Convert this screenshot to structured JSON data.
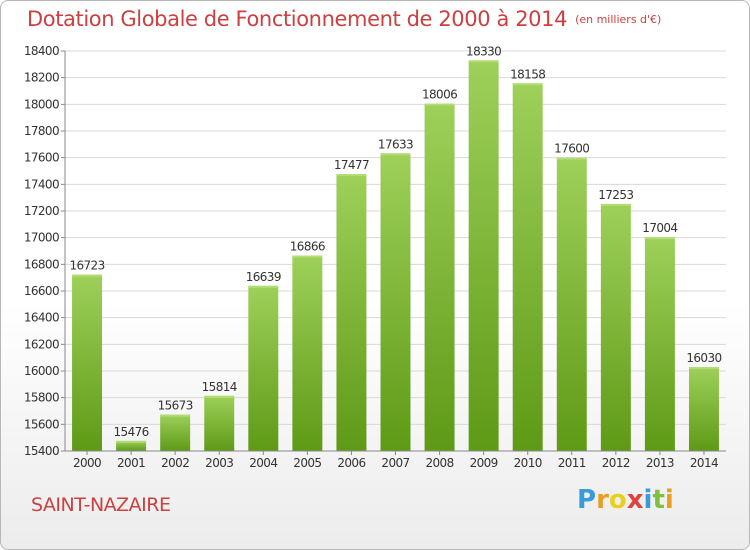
{
  "header": {
    "title": "Dotation Globale de Fonctionnement de 2000 à 2014",
    "unit": "(en milliers d'€)"
  },
  "footer": {
    "commune": "SAINT-NAZAIRE",
    "logo": {
      "letters": [
        "P",
        "r",
        "o",
        "x",
        "i",
        "t",
        "i"
      ],
      "colors": [
        "#3a9bd9",
        "#e8a020",
        "#e8d020",
        "#e04040",
        "#3a9bd9",
        "#80c040",
        "#e8a020"
      ]
    }
  },
  "colors": {
    "bar_top": "#9ed05a",
    "bar_bottom": "#5e9a16",
    "title": "#cc4040"
  },
  "chart_data": {
    "type": "bar",
    "categories": [
      "2000",
      "2001",
      "2002",
      "2003",
      "2004",
      "2005",
      "2006",
      "2007",
      "2008",
      "2009",
      "2010",
      "2011",
      "2012",
      "2013",
      "2014"
    ],
    "values": [
      16723,
      15476,
      15673,
      15814,
      16639,
      16866,
      17477,
      17633,
      18006,
      18330,
      18158,
      17600,
      17253,
      17004,
      16030
    ],
    "ylim": [
      15400,
      18400
    ],
    "yticks": [
      15400,
      15600,
      15800,
      16000,
      16200,
      16400,
      16600,
      16800,
      17000,
      17200,
      17400,
      17600,
      17800,
      18000,
      18200,
      18400
    ],
    "grid": true,
    "legend": "none"
  }
}
